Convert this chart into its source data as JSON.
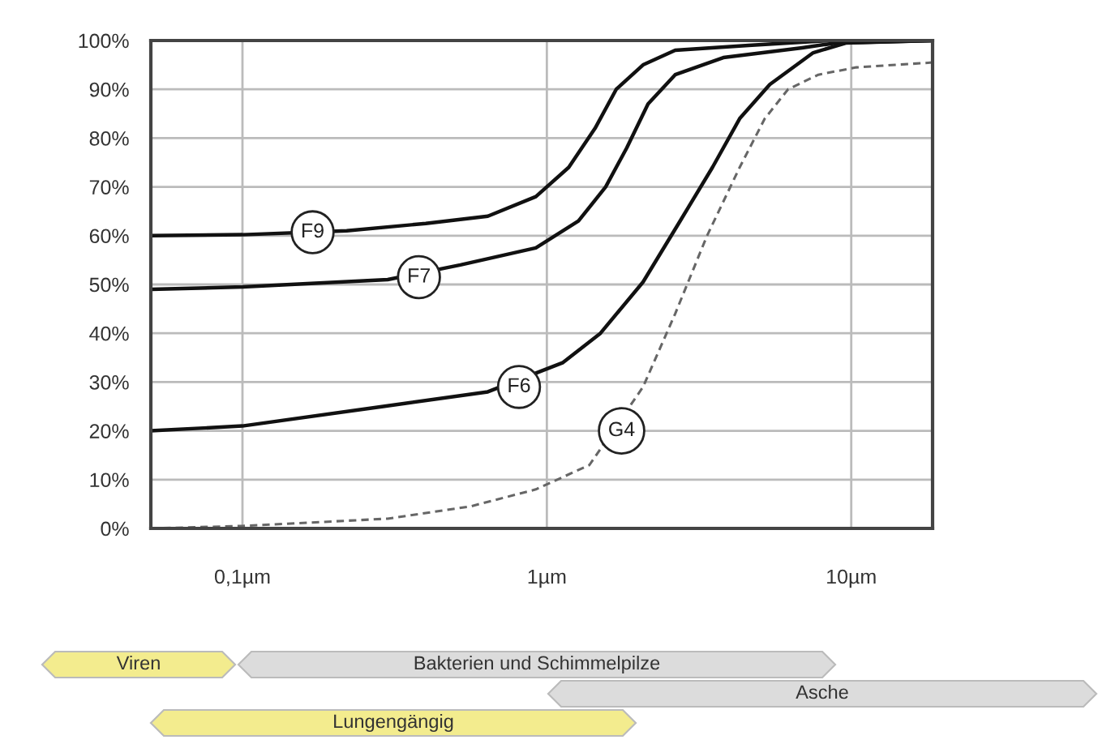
{
  "chart_data": {
    "type": "line",
    "log": "x",
    "grid": true,
    "legend": false,
    "xlim": [
      0.05,
      18.5
    ],
    "xticks": [
      {
        "value": 0.1,
        "label": "0,1µm"
      },
      {
        "value": 1,
        "label": "1µm"
      },
      {
        "value": 10,
        "label": "10µm"
      }
    ],
    "ylim": [
      0,
      100
    ],
    "yticks": [
      {
        "value": 0,
        "label": "0%"
      },
      {
        "value": 10,
        "label": "10%"
      },
      {
        "value": 20,
        "label": "20%"
      },
      {
        "value": 30,
        "label": "30%"
      },
      {
        "value": 40,
        "label": "40%"
      },
      {
        "value": 50,
        "label": "50%"
      },
      {
        "value": 60,
        "label": "60%"
      },
      {
        "value": 70,
        "label": "70%"
      },
      {
        "value": 80,
        "label": "80%"
      },
      {
        "value": 90,
        "label": "90%"
      },
      {
        "value": 100,
        "label": "100%"
      }
    ],
    "series": [
      {
        "name": "F9",
        "color": "#111111",
        "line_style": "solid",
        "x": [
          0.05,
          0.1,
          0.22,
          0.4,
          0.64,
          0.92,
          1.18,
          1.44,
          1.69,
          2.07,
          2.64,
          4.6,
          8.5,
          18.5
        ],
        "values": [
          60,
          60.2,
          61,
          62.5,
          64,
          68,
          74,
          82,
          90,
          95,
          98,
          99,
          100,
          100
        ]
      },
      {
        "name": "F7",
        "color": "#111111",
        "line_style": "solid",
        "x": [
          0.05,
          0.1,
          0.3,
          0.52,
          0.92,
          1.27,
          1.56,
          1.83,
          2.15,
          2.64,
          3.8,
          6.9,
          8.9,
          18.5
        ],
        "values": [
          49,
          49.5,
          51,
          54,
          57.5,
          63,
          70,
          78,
          87,
          93,
          96.5,
          98.5,
          99.5,
          100
        ]
      },
      {
        "name": "F6",
        "color": "#111111",
        "line_style": "solid",
        "x": [
          0.05,
          0.1,
          0.29,
          0.64,
          1.13,
          1.5,
          2.07,
          2.74,
          3.5,
          4.3,
          5.4,
          7.5,
          9.6,
          18.5
        ],
        "values": [
          20,
          21,
          25,
          28,
          34,
          40,
          50.5,
          63,
          74,
          84,
          91,
          97.5,
          99.5,
          100
        ]
      },
      {
        "name": "G4",
        "color": "#666666",
        "line_style": "dashed",
        "x": [
          0.05,
          0.1,
          0.3,
          0.56,
          0.92,
          1.38,
          2.07,
          2.64,
          3.36,
          4.3,
          5.2,
          6.2,
          7.8,
          10.4,
          18.5
        ],
        "values": [
          0,
          0.5,
          2,
          4.5,
          8,
          13,
          29,
          44,
          60,
          74,
          84,
          90,
          93,
          94.5,
          95.5
        ]
      }
    ],
    "annotations": [
      "Viren",
      "Bakterien und Schimmelpilze",
      "Asche",
      "Lungengängig"
    ]
  }
}
